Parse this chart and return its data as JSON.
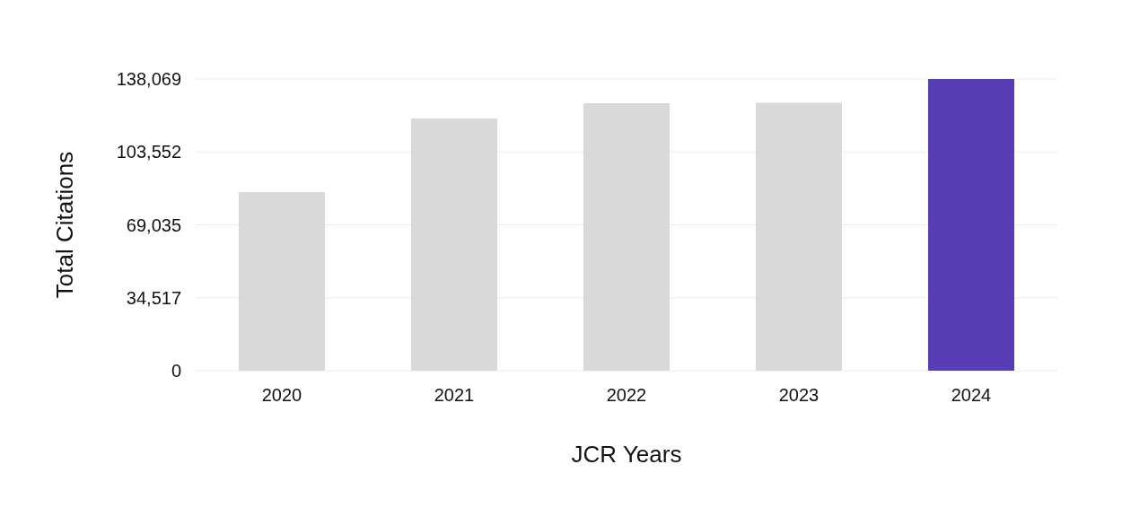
{
  "chart_data": {
    "type": "bar",
    "xlabel": "JCR Years",
    "ylabel": "Total Citations",
    "categories": [
      "2020",
      "2021",
      "2022",
      "2023",
      "2024"
    ],
    "values": [
      84500,
      119400,
      126600,
      126800,
      138069
    ],
    "colors": [
      "#d9d9d9",
      "#d9d9d9",
      "#d9d9d9",
      "#d9d9d9",
      "#583cb3"
    ],
    "ylim": [
      0,
      138069
    ],
    "yticks": [
      {
        "value": 0,
        "label": "0"
      },
      {
        "value": 34517,
        "label": "34,517"
      },
      {
        "value": 69035,
        "label": "69,035"
      },
      {
        "value": 103552,
        "label": "103,552"
      },
      {
        "value": 138069,
        "label": "138,069"
      }
    ],
    "grid": "y",
    "legend": false
  }
}
